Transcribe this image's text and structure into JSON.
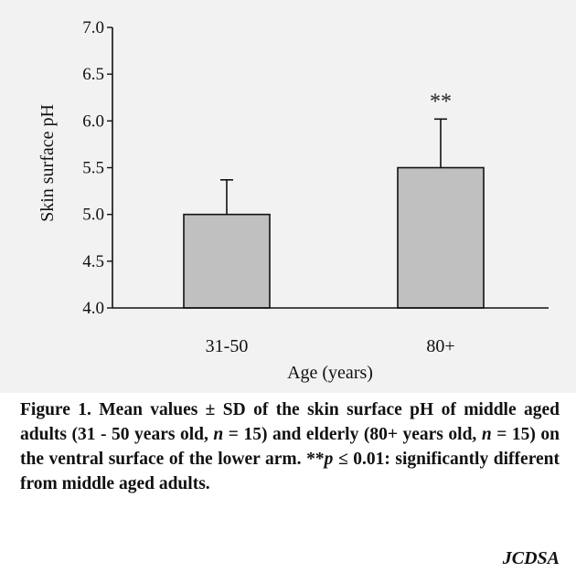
{
  "chart_data": {
    "type": "bar",
    "categories": [
      "31-50",
      "80+"
    ],
    "values": [
      5.0,
      5.5
    ],
    "error_sd": [
      0.37,
      0.52
    ],
    "significance": [
      "",
      "**"
    ],
    "xlabel": "Age (years)",
    "ylabel": "Skin surface pH",
    "ylim": [
      4.0,
      7.0
    ],
    "yticks": [
      "4.0",
      "4.5",
      "5.0",
      "5.5",
      "6.0",
      "6.5",
      "7.0"
    ],
    "grid": false,
    "bar_color": "#c0c0c0",
    "legend": "none"
  },
  "caption": {
    "parts": [
      {
        "text": "Figure 1. Mean values ± SD of the skin surface pH of middle aged adults (31 - 50 years old, ",
        "italic": false
      },
      {
        "text": "n",
        "italic": true
      },
      {
        "text": " = 15) and elderly (80+ years old, ",
        "italic": false
      },
      {
        "text": "n",
        "italic": true
      },
      {
        "text": " = 15) on the ventral surface of the lower arm. **",
        "italic": false
      },
      {
        "text": "p",
        "italic": true
      },
      {
        "text": " ≤ 0.01: significantly different from middle aged adults.",
        "italic": false
      }
    ]
  },
  "journal": "JCDSA"
}
